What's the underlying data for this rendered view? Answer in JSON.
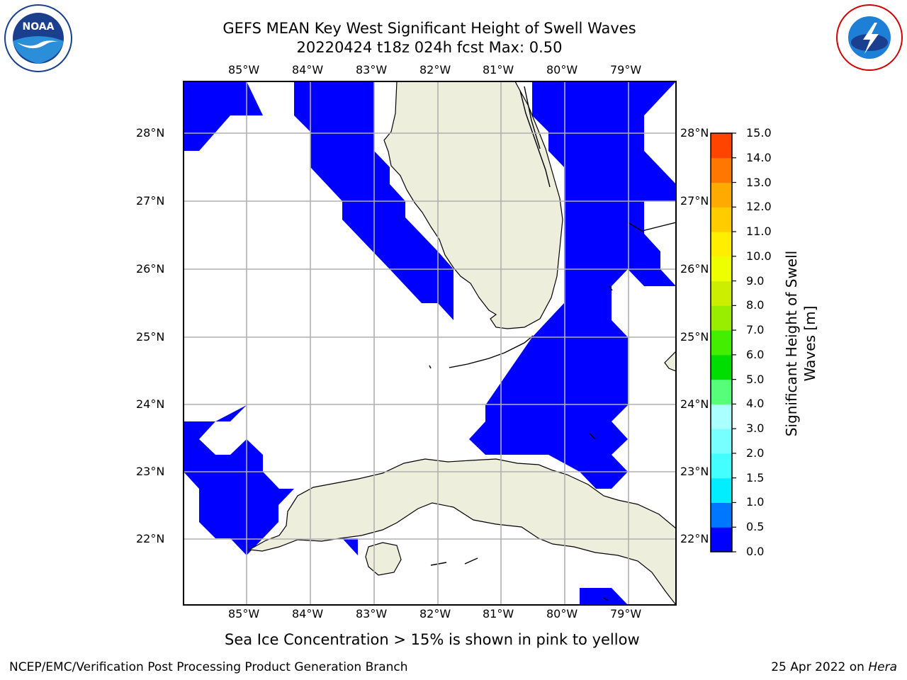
{
  "title_line1": "GEFS MEAN Key West Significant Height of Swell Waves",
  "title_line2": "20220424 t18z 024h fcst   Max: 0.50",
  "lon_labels": [
    "85°W",
    "84°W",
    "83°W",
    "82°W",
    "81°W",
    "80°W",
    "79°W"
  ],
  "lat_labels": [
    "28°N",
    "27°N",
    "26°N",
    "25°N",
    "24°N",
    "23°N",
    "22°N"
  ],
  "map_extent": {
    "lon_min": -86.0,
    "lon_max": -78.25,
    "lat_min": 21.0,
    "lat_max": 28.75
  },
  "colorbar": {
    "label": "Significant Height of Swell Waves [m]",
    "ticks": [
      "15.0",
      "14.0",
      "13.0",
      "12.0",
      "11.0",
      "10.0",
      "9.0",
      "8.0",
      "7.0",
      "6.0",
      "5.0",
      "4.0",
      "3.0",
      "2.0",
      "1.5",
      "1.0",
      "0.5",
      "0.0"
    ],
    "levels": [
      0.0,
      0.5,
      1.0,
      1.5,
      2.0,
      3.0,
      4.0,
      5.0,
      6.0,
      7.0,
      8.0,
      9.0,
      10.0,
      11.0,
      12.0,
      13.0,
      14.0,
      15.0
    ],
    "colors": [
      "#0000ff",
      "#0077ff",
      "#00eeff",
      "#44ffff",
      "#77ffff",
      "#aaffff",
      "#55ff77",
      "#00dd00",
      "#44ee00",
      "#99ee00",
      "#ccee00",
      "#eeff00",
      "#ffee00",
      "#ffcc00",
      "#ffaa00",
      "#ff7700",
      "#ff4400",
      "#ff0000"
    ]
  },
  "colors": {
    "land": "#eeeedd",
    "swell": "#0000ff",
    "grid": "#b0b0b0"
  },
  "footer_note": "Sea Ice Concentration > 15% is shown in pink to yellow",
  "footer_left": "NCEP/EMC/Verification Post Processing Product Generation Branch",
  "footer_right_date": "25 Apr 2022 on ",
  "footer_right_host": "Hera",
  "logos": {
    "noaa": "NOAA",
    "nws": "NATIONAL WEATHER SERVICE"
  }
}
